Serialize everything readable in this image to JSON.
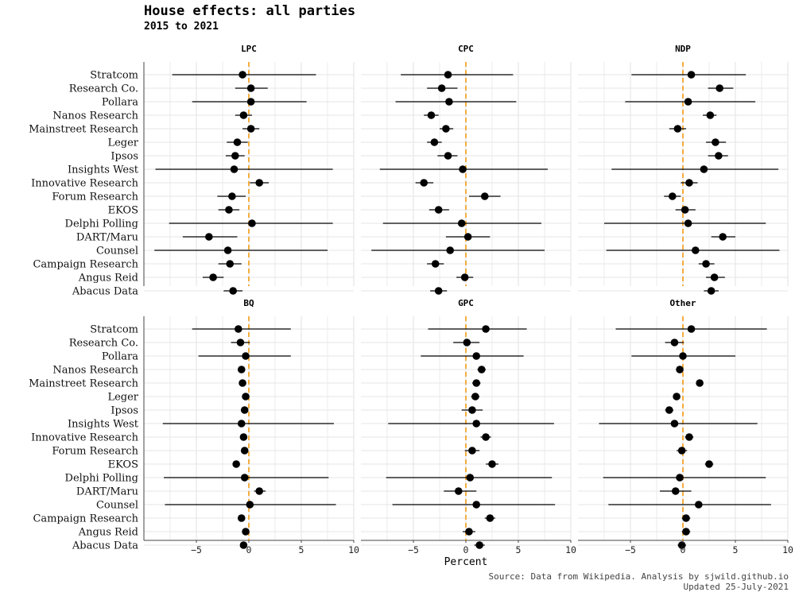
{
  "chart_data": {
    "type": "scatter",
    "title": "House effects: all parties",
    "subtitle": "2015 to 2021",
    "xlabel": "Percent",
    "ylabel": "",
    "xlim": [
      -10,
      10
    ],
    "xticks": [
      -5,
      0,
      5,
      10
    ],
    "reference_line": {
      "x": 0,
      "color": "#f39c12",
      "style": "dashed"
    },
    "grid": true,
    "pollsters": [
      "Stratcom",
      "Research Co.",
      "Pollara",
      "Nanos Research",
      "Mainstreet Research",
      "Leger",
      "Ipsos",
      "Insights West",
      "Innovative Research",
      "Forum Research",
      "EKOS",
      "Delphi Polling",
      "DART/Maru",
      "Counsel",
      "Campaign Research",
      "Angus Reid",
      "Abacus Data"
    ],
    "facets": [
      {
        "party": "LPC",
        "estimate": [
          -0.6,
          0.2,
          0.2,
          -0.5,
          0.2,
          -1.1,
          -1.3,
          -1.4,
          1.0,
          -1.6,
          -1.9,
          0.3,
          -3.8,
          -2.0,
          -1.8,
          -3.4,
          -1.5
        ],
        "low": [
          -7.3,
          -1.3,
          -5.4,
          -1.3,
          -0.6,
          -2.1,
          -2.2,
          -8.9,
          0.1,
          -3.0,
          -2.9,
          -7.6,
          -6.3,
          -9.0,
          -2.9,
          -4.4,
          -2.4
        ],
        "high": [
          6.4,
          1.8,
          5.5,
          0.3,
          1.0,
          -0.1,
          -0.4,
          8.0,
          1.9,
          -0.3,
          -0.9,
          8.0,
          -1.1,
          7.5,
          -0.7,
          -2.4,
          -0.6
        ]
      },
      {
        "party": "CPC",
        "estimate": [
          -1.7,
          -2.3,
          -1.6,
          -3.3,
          -1.9,
          -3.0,
          -1.7,
          -0.3,
          -4.0,
          1.8,
          -2.6,
          -0.4,
          0.2,
          -1.5,
          -2.9,
          -0.1,
          -2.6
        ],
        "low": [
          -6.2,
          -3.7,
          -6.7,
          -4.0,
          -2.5,
          -3.7,
          -2.7,
          -8.2,
          -4.8,
          0.3,
          -3.5,
          -7.9,
          -1.9,
          -9.0,
          -3.7,
          -0.9,
          -3.4
        ],
        "high": [
          4.5,
          -0.8,
          4.8,
          -2.6,
          -1.2,
          -2.3,
          -0.8,
          7.8,
          -3.1,
          3.3,
          -1.6,
          7.2,
          2.3,
          7.5,
          -2.1,
          0.7,
          -1.8
        ]
      },
      {
        "party": "NDP",
        "estimate": [
          0.8,
          3.5,
          0.5,
          2.6,
          -0.5,
          3.1,
          3.4,
          2.0,
          0.6,
          -1.0,
          0.2,
          0.5,
          3.8,
          1.2,
          2.2,
          3.0,
          2.7
        ],
        "low": [
          -4.9,
          2.4,
          -5.5,
          1.9,
          -1.3,
          2.2,
          2.4,
          -6.8,
          -0.2,
          -1.8,
          -0.7,
          -7.5,
          2.7,
          -7.3,
          1.5,
          2.2,
          2.0
        ],
        "high": [
          6.0,
          4.8,
          6.9,
          3.2,
          0.3,
          4.1,
          4.3,
          9.1,
          1.4,
          -0.2,
          1.2,
          7.9,
          5.0,
          9.2,
          3.0,
          4.0,
          3.4
        ]
      },
      {
        "party": "BQ",
        "estimate": [
          -1.0,
          -0.8,
          -0.3,
          -0.7,
          -0.6,
          -0.3,
          -0.4,
          -0.7,
          -0.5,
          -0.4,
          -1.2,
          -0.4,
          1.0,
          0.1,
          -0.7,
          -0.3,
          -0.5
        ],
        "low": [
          -5.4,
          -1.7,
          -4.8,
          -1.0,
          -0.9,
          -0.6,
          -0.7,
          -8.2,
          -0.8,
          -0.7,
          -1.5,
          -8.1,
          0.5,
          -8.0,
          -1.0,
          -0.6,
          -0.8
        ],
        "high": [
          4.0,
          0.1,
          4.0,
          -0.4,
          -0.3,
          0.0,
          -0.1,
          8.1,
          -0.2,
          -0.1,
          -0.9,
          7.6,
          1.6,
          8.3,
          -0.4,
          0.0,
          -0.2
        ]
      },
      {
        "party": "GPC",
        "estimate": [
          1.9,
          0.1,
          1.0,
          1.5,
          1.0,
          0.9,
          0.6,
          1.0,
          1.9,
          0.6,
          2.5,
          0.4,
          -0.7,
          1.0,
          2.3,
          0.3,
          1.3
        ],
        "low": [
          -3.6,
          -1.2,
          -4.3,
          1.1,
          0.6,
          0.5,
          -0.4,
          -7.4,
          1.4,
          -0.1,
          1.9,
          -7.6,
          -2.1,
          -7.0,
          1.8,
          -0.3,
          0.8
        ],
        "high": [
          5.8,
          1.3,
          5.5,
          1.9,
          1.4,
          1.3,
          1.6,
          8.4,
          2.4,
          1.3,
          3.1,
          8.2,
          1.0,
          8.5,
          2.8,
          0.9,
          1.8
        ]
      },
      {
        "party": "Other",
        "estimate": [
          0.8,
          -0.8,
          0.0,
          -0.3,
          1.6,
          -0.6,
          -1.3,
          -0.8,
          0.6,
          -0.1,
          2.5,
          -0.3,
          -0.7,
          1.5,
          0.3,
          0.3,
          -0.1
        ],
        "low": [
          -6.4,
          -1.7,
          -4.9,
          -0.5,
          1.3,
          -0.9,
          -1.7,
          -8.0,
          0.2,
          -0.6,
          2.1,
          -7.6,
          -2.2,
          -7.1,
          -0.1,
          -0.1,
          -0.5
        ],
        "high": [
          8.0,
          0.1,
          5.0,
          -0.1,
          1.9,
          -0.3,
          -0.9,
          7.1,
          1.0,
          0.4,
          2.9,
          7.9,
          0.8,
          8.4,
          0.7,
          0.7,
          0.3
        ]
      }
    ],
    "caption_source": "Source: Data from Wikipedia. Analysis by sjwild.github.io",
    "caption_updated": "Updated 25-July-2021"
  },
  "colors": {
    "point": "#000000",
    "reference": "#f39c12",
    "grid": "#e6e6e6",
    "axis": "#444444"
  }
}
